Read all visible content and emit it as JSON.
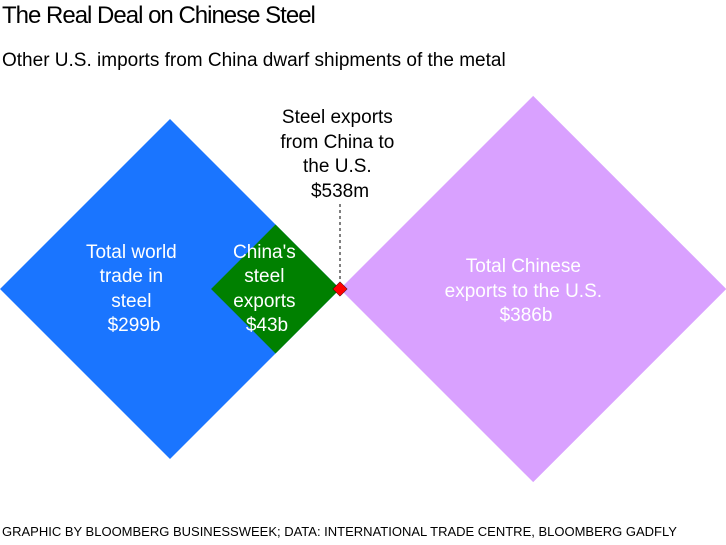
{
  "title": "The Real Deal on Chinese Steel",
  "subtitle": "Other U.S. imports from China dwarf shipments of the metal",
  "source": "GRAPHIC BY BLOOMBERG BUSINESSWEEK; DATA: INTERNATIONAL TRADE CENTRE, BLOOMBERG GADFLY",
  "chart_data": {
    "type": "area-proportional squares",
    "items": [
      {
        "key": "world",
        "label_lines": [
          "Total world",
          "trade in",
          "steel",
          "$299b"
        ],
        "value_usd_billions": 299,
        "color": "#1a75ff",
        "text_color": "#ffffff"
      },
      {
        "key": "china_steel",
        "label_lines": [
          "China's",
          "steel",
          "exports",
          "$43b"
        ],
        "value_usd_billions": 43,
        "color": "#008000",
        "text_color": "#ffffff"
      },
      {
        "key": "china_to_us_steel",
        "label_lines": [
          "Steel exports",
          "from China to",
          "the U.S.",
          "$538m"
        ],
        "value_usd_billions": 0.538,
        "color": "#ff0000",
        "text_color": "#000000"
      },
      {
        "key": "china_to_us_total",
        "label_lines": [
          "Total Chinese",
          "exports to the U.S.",
          "$386b"
        ],
        "value_usd_billions": 386,
        "color": "#d9a1ff",
        "text_color": "#ffffff"
      }
    ]
  }
}
